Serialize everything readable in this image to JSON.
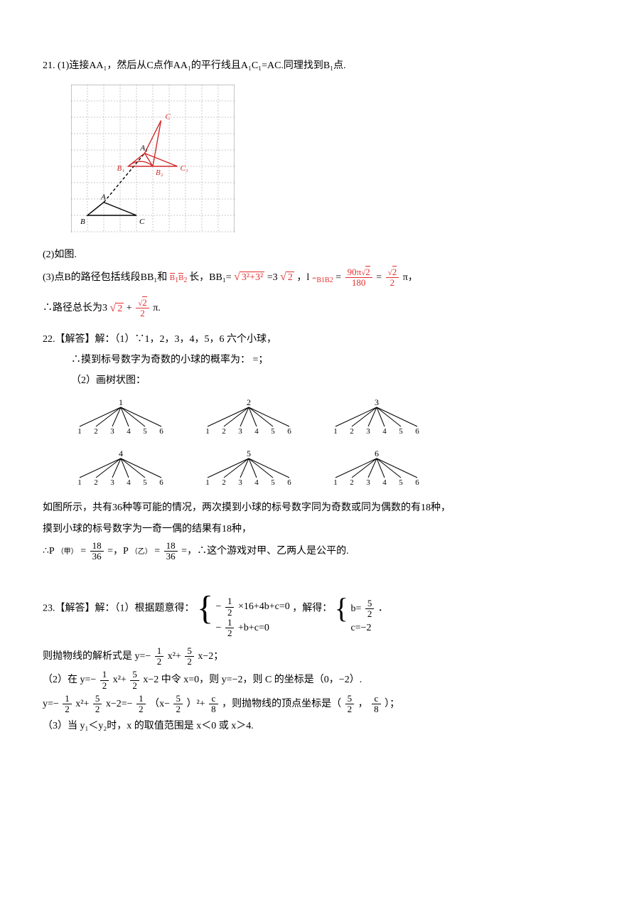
{
  "q21": {
    "part1": "21. (1)连接AA₁，然后从C点作AA₁的平行线且A₁C₁=AC.同理找到B₁点.",
    "part2": "(2)如图.",
    "part3_a": "(3)点B的路径包括线段BB₁和",
    "part3_b": "长，BB₁=",
    "part3_c": "=3",
    "part3_d": "，l",
    "part3_e": "=",
    "part3_f": "=",
    "part3_g": "π，",
    "concl_a": "∴路径总长为3",
    "concl_b": "+",
    "concl_c": "π.",
    "sqrt_expr": "3²+3²",
    "sqrt2": "2",
    "arc_label_prefix": "B₁B₂",
    "arc_sub": "B1B2",
    "frac_90pi_num": "90π√2",
    "frac_90pi_den": "180",
    "frac_s2_num": "√2",
    "frac_s2_den": "2",
    "grid": {
      "labels": {
        "A": "A",
        "A1": "A₁",
        "B": "B",
        "B1": "B₁",
        "B2": "B₂",
        "C": "C",
        "C1": "C₁",
        "C_top": "C"
      },
      "grid_color": "#c8c8c8",
      "line_color_black": "#000000",
      "line_color_red": "#d02a2a"
    }
  },
  "q22": {
    "head": "22.【解答】解：（1）∵1，2，3，4，5，6 六个小球，",
    "l1": "∴摸到标号数字为奇数的小球的概率为： =；",
    "l2": "（2）画树状图：",
    "after_tree1": "如图所示，共有36种等可能的情况，两次摸到小球的标号数字同为奇数或同为偶数的有18种，",
    "after_tree2": "摸到小球的标号数字为一奇一偶的结果有18种，",
    "p_line_a": "∴P",
    "p_jia": "（甲）",
    "p_line_b": "=",
    "p_line_c": "=，P",
    "p_yi": "（乙）",
    "p_line_d": "=",
    "p_line_e": "=，∴这个游戏对甲、乙两人是公平的.",
    "frac_num": "18",
    "frac_den": "36",
    "tree": {
      "parents": [
        "1",
        "2",
        "3",
        "4",
        "5",
        "6"
      ],
      "children": [
        "1",
        "2",
        "3",
        "4",
        "5",
        "6"
      ],
      "color": "#000000"
    }
  },
  "q23": {
    "head_a": "23.【解答】解：（1）根据题意得：",
    "sys_r1_a": "−",
    "sys_r1_b": "×16+4b+c=0",
    "sys_r2_a": "−",
    "sys_r2_b": "+b+c=0",
    "solve_txt": "，解得：",
    "sol_r1": "b=",
    "sol_r2": "c=−2",
    "period": "．",
    "frac_half_num": "1",
    "frac_half_den": "2",
    "frac_52_num": "5",
    "frac_52_den": "2",
    "frac_c8_num": "c",
    "frac_c8_den": "8",
    "l1_a": "则抛物线的解析式是 y=−",
    "l1_b": "x²+",
    "l1_c": "x−2；",
    "l2_a": "（2）在 y=−",
    "l2_b": "x²+",
    "l2_c": "x−2 中令 x=0，则 y=−2，则 C 的坐标是（0，−2）.",
    "l3_a": "y=−",
    "l3_b": "x²+",
    "l3_c": "x−2=−",
    "l3_d": "（x−",
    "l3_e": "）²+",
    "l3_f": "，则抛物线的顶点坐标是（",
    "l3_g": "，",
    "l3_h": "）；",
    "l4": "（3）当 y₁＜y₂时，x 的取值范围是 x＜0 或 x＞4."
  }
}
